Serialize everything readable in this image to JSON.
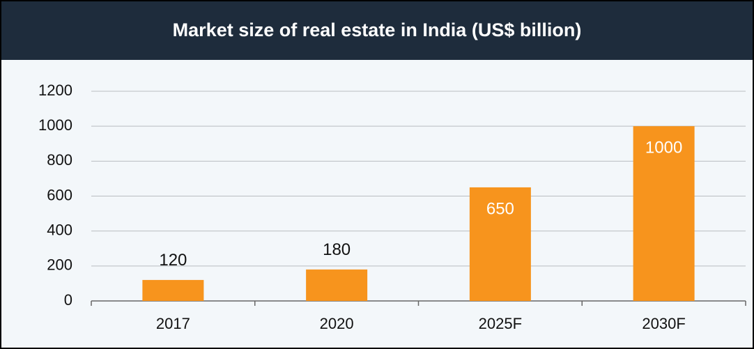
{
  "chart_data": {
    "type": "bar",
    "title": "Market size of real estate in India (US$ billion)",
    "categories": [
      "2017",
      "2020",
      "2025F",
      "2030F"
    ],
    "values": [
      120,
      180,
      650,
      1000
    ],
    "color": "#f7941d",
    "ylim": [
      0,
      1200
    ],
    "yticks": [
      0,
      200,
      400,
      600,
      800,
      1000,
      1200
    ],
    "grid": true
  }
}
